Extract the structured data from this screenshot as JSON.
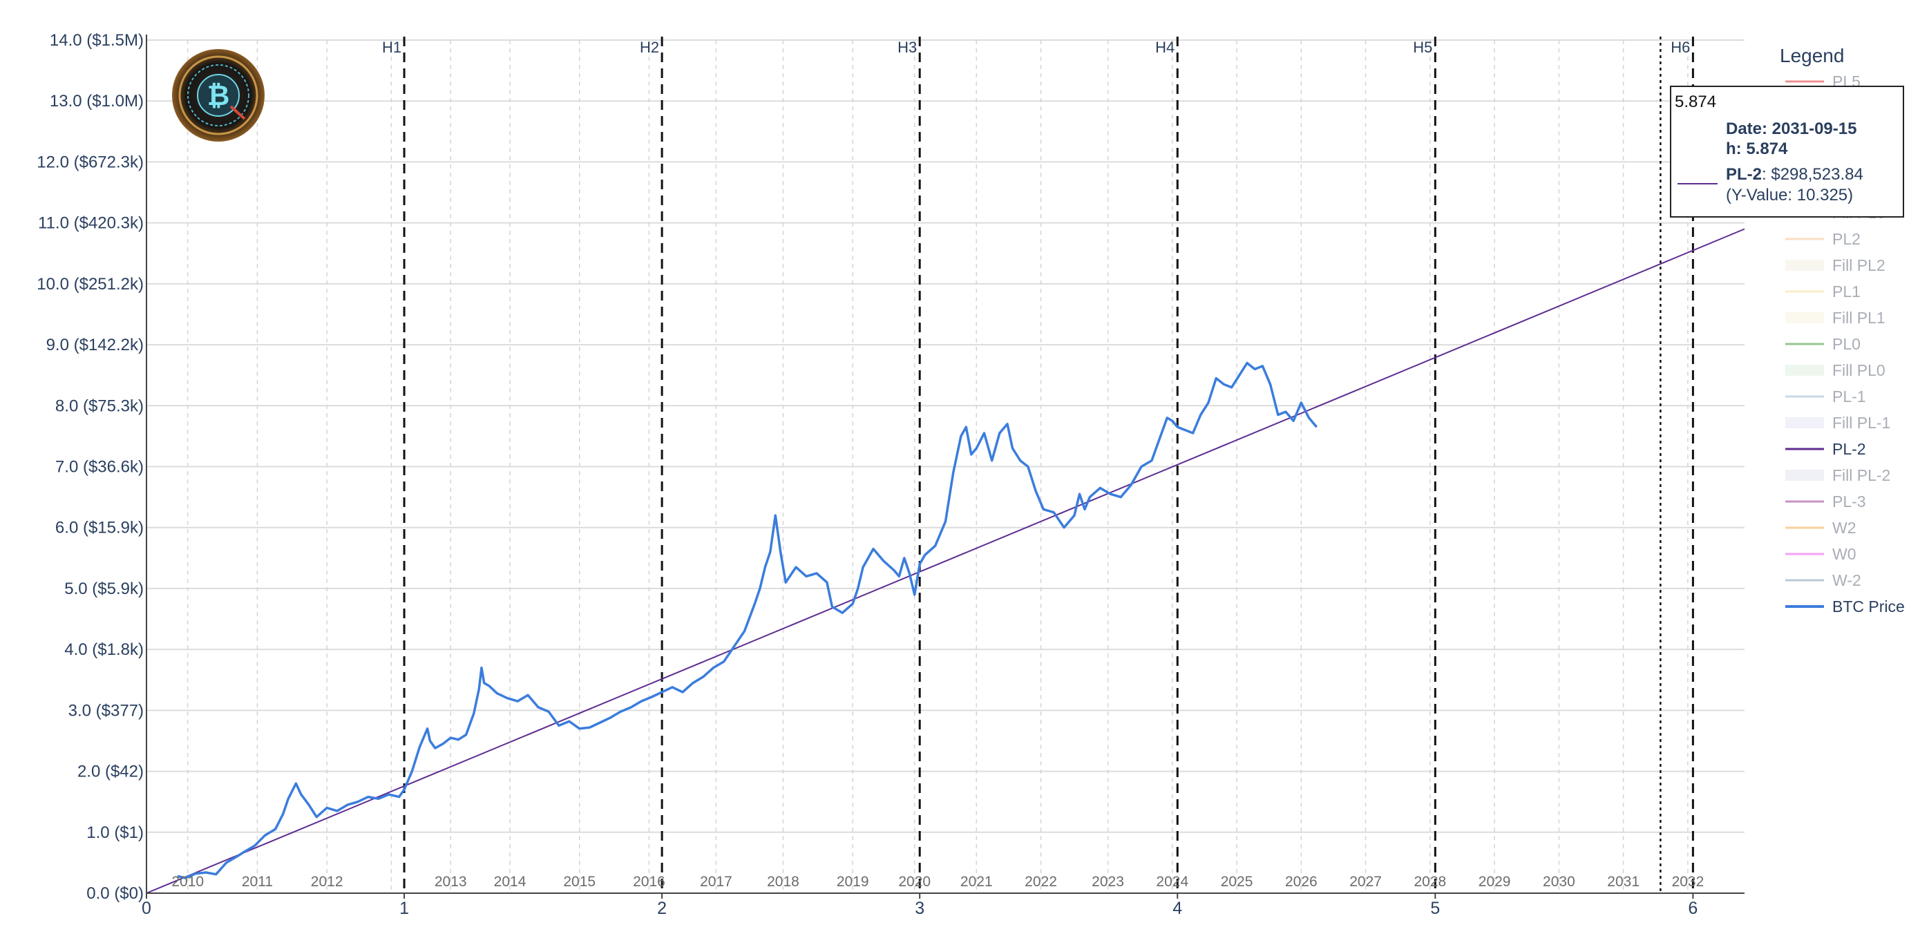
{
  "chart_data": {
    "type": "line",
    "title": "",
    "xlabel": "",
    "ylabel": "",
    "xlim": [
      0,
      6.2
    ],
    "ylim": [
      0,
      14
    ],
    "grid": true,
    "legend_placement": "right",
    "y_ticks": [
      {
        "v": 0,
        "label": "0.0 ($0)"
      },
      {
        "v": 1,
        "label": "1.0 ($1)"
      },
      {
        "v": 2,
        "label": "2.0 ($42)"
      },
      {
        "v": 3,
        "label": "3.0 ($377)"
      },
      {
        "v": 4,
        "label": "4.0 ($1.8k)"
      },
      {
        "v": 5,
        "label": "5.0 ($5.9k)"
      },
      {
        "v": 6,
        "label": "6.0 ($15.9k)"
      },
      {
        "v": 7,
        "label": "7.0 ($36.6k)"
      },
      {
        "v": 8,
        "label": "8.0 ($75.3k)"
      },
      {
        "v": 9,
        "label": "9.0 ($142.2k)"
      },
      {
        "v": 10,
        "label": "10.0 ($251.2k)"
      },
      {
        "v": 11,
        "label": "11.0 ($420.3k)"
      },
      {
        "v": 12,
        "label": "12.0 ($672.3k)"
      },
      {
        "v": 13,
        "label": "13.0 ($1.0M)"
      },
      {
        "v": 14,
        "label": "14.0 ($1.5M)"
      }
    ],
    "x_ticks": [
      {
        "v": 0,
        "label": "0"
      },
      {
        "v": 1,
        "label": "1"
      },
      {
        "v": 2,
        "label": "2"
      },
      {
        "v": 3,
        "label": "3"
      },
      {
        "v": 4,
        "label": "4"
      },
      {
        "v": 5,
        "label": "5"
      },
      {
        "v": 6,
        "label": "6"
      }
    ],
    "year_ticks": [
      {
        "v": 0.16,
        "label": "2010"
      },
      {
        "v": 0.43,
        "label": "2011"
      },
      {
        "v": 0.7,
        "label": "2012"
      },
      {
        "v": 0.95,
        "label": "2012",
        "hidden": true
      },
      {
        "v": 1.18,
        "label": "2013"
      },
      {
        "v": 1.41,
        "label": "2014"
      },
      {
        "v": 1.68,
        "label": "2015"
      },
      {
        "v": 1.95,
        "label": "2016"
      },
      {
        "v": 2.21,
        "label": "2017"
      },
      {
        "v": 2.47,
        "label": "2018"
      },
      {
        "v": 2.74,
        "label": "2019"
      },
      {
        "v": 2.98,
        "label": "2020"
      },
      {
        "v": 3.22,
        "label": "2021"
      },
      {
        "v": 3.47,
        "label": "2022"
      },
      {
        "v": 3.73,
        "label": "2023"
      },
      {
        "v": 3.98,
        "label": "2024"
      },
      {
        "v": 4.23,
        "label": "2025"
      },
      {
        "v": 4.48,
        "label": "2026"
      },
      {
        "v": 4.73,
        "label": "2027"
      },
      {
        "v": 4.98,
        "label": "2028"
      },
      {
        "v": 5.23,
        "label": "2029"
      },
      {
        "v": 5.48,
        "label": "2030"
      },
      {
        "v": 5.73,
        "label": "2031"
      },
      {
        "v": 5.98,
        "label": "2032"
      }
    ],
    "halvings": [
      {
        "v": 1,
        "label": "H1"
      },
      {
        "v": 2,
        "label": "H2"
      },
      {
        "v": 3,
        "label": "H3"
      },
      {
        "v": 4,
        "label": "H4"
      },
      {
        "v": 5,
        "label": "H5"
      },
      {
        "v": 6,
        "label": "H6"
      }
    ],
    "hover_line_x": 5.874,
    "series": [
      {
        "name": "PL-2",
        "color": "#5e2d91",
        "x": [
          0,
          6.2
        ],
        "y": [
          0,
          10.9
        ]
      },
      {
        "name": "BTC Price",
        "color": "#3b7ddd",
        "x": [
          0.12,
          0.15,
          0.19,
          0.23,
          0.27,
          0.31,
          0.35,
          0.38,
          0.42,
          0.46,
          0.5,
          0.53,
          0.55,
          0.58,
          0.6,
          0.63,
          0.66,
          0.7,
          0.74,
          0.78,
          0.82,
          0.86,
          0.9,
          0.94,
          0.98,
          1.0,
          1.03,
          1.06,
          1.09,
          1.1,
          1.12,
          1.15,
          1.18,
          1.21,
          1.24,
          1.27,
          1.29,
          1.3,
          1.31,
          1.33,
          1.36,
          1.4,
          1.44,
          1.48,
          1.52,
          1.56,
          1.6,
          1.64,
          1.68,
          1.72,
          1.76,
          1.8,
          1.84,
          1.88,
          1.92,
          1.96,
          2.0,
          2.04,
          2.08,
          2.12,
          2.16,
          2.2,
          2.24,
          2.28,
          2.32,
          2.36,
          2.38,
          2.4,
          2.42,
          2.44,
          2.46,
          2.48,
          2.52,
          2.56,
          2.6,
          2.64,
          2.66,
          2.7,
          2.74,
          2.76,
          2.78,
          2.82,
          2.86,
          2.9,
          2.92,
          2.94,
          2.96,
          2.98,
          3.0,
          3.02,
          3.06,
          3.1,
          3.13,
          3.16,
          3.18,
          3.2,
          3.22,
          3.25,
          3.28,
          3.31,
          3.34,
          3.36,
          3.39,
          3.42,
          3.45,
          3.48,
          3.52,
          3.56,
          3.6,
          3.62,
          3.64,
          3.66,
          3.7,
          3.74,
          3.78,
          3.82,
          3.86,
          3.9,
          3.93,
          3.96,
          3.98,
          4.0,
          4.03,
          4.06,
          4.09,
          4.12,
          4.15,
          4.18,
          4.21,
          4.24,
          4.27,
          4.3,
          4.33,
          4.36,
          4.39,
          4.42,
          4.45,
          4.48,
          4.51,
          4.54
        ],
        "y": [
          0.28,
          0.25,
          0.32,
          0.34,
          0.31,
          0.5,
          0.6,
          0.68,
          0.78,
          0.95,
          1.05,
          1.3,
          1.55,
          1.8,
          1.62,
          1.45,
          1.25,
          1.4,
          1.35,
          1.45,
          1.5,
          1.58,
          1.55,
          1.62,
          1.58,
          1.7,
          2.0,
          2.4,
          2.7,
          2.5,
          2.38,
          2.45,
          2.55,
          2.52,
          2.6,
          2.95,
          3.35,
          3.7,
          3.45,
          3.4,
          3.28,
          3.2,
          3.15,
          3.25,
          3.05,
          2.98,
          2.75,
          2.82,
          2.7,
          2.72,
          2.8,
          2.88,
          2.98,
          3.05,
          3.15,
          3.22,
          3.3,
          3.38,
          3.3,
          3.45,
          3.55,
          3.7,
          3.8,
          4.05,
          4.3,
          4.75,
          5.0,
          5.35,
          5.6,
          6.2,
          5.6,
          5.1,
          5.35,
          5.2,
          5.25,
          5.1,
          4.7,
          4.6,
          4.75,
          5.0,
          5.35,
          5.65,
          5.45,
          5.3,
          5.2,
          5.5,
          5.25,
          4.9,
          5.4,
          5.55,
          5.7,
          6.1,
          6.9,
          7.5,
          7.65,
          7.2,
          7.3,
          7.55,
          7.1,
          7.55,
          7.7,
          7.3,
          7.1,
          7.0,
          6.6,
          6.3,
          6.25,
          6.0,
          6.2,
          6.55,
          6.3,
          6.5,
          6.65,
          6.55,
          6.5,
          6.7,
          7.0,
          7.1,
          7.45,
          7.8,
          7.75,
          7.65,
          7.6,
          7.55,
          7.85,
          8.05,
          8.45,
          8.35,
          8.3,
          8.5,
          8.7,
          8.6,
          8.65,
          8.35,
          7.85,
          7.9,
          7.75,
          8.05,
          7.8,
          7.65
        ]
      }
    ],
    "tooltip": {
      "header": "5.874",
      "line1": "Date: 2031-09-15",
      "line2": "h: 5.874",
      "series_label": "PL-2",
      "series_value": ": $298,523.84",
      "y_value_text": "(Y-Value: 10.325)"
    },
    "legend": {
      "title": "Legend",
      "items": [
        {
          "label": "PL5",
          "color": "#e8474b",
          "type": "line",
          "faded": true
        },
        {
          "label": "Fill PL3",
          "color": "#f1d3b3",
          "type": "line",
          "faded": true
        },
        {
          "label": "PL2",
          "color": "#f6c89a",
          "type": "line",
          "faded": true
        },
        {
          "label": "Fill PL2",
          "color": "#f8f5ee",
          "type": "fill",
          "faded": true
        },
        {
          "label": "PL1",
          "color": "#f8e0a8",
          "type": "line",
          "faded": true
        },
        {
          "label": "Fill PL1",
          "color": "#fbf8ec",
          "type": "fill",
          "faded": true
        },
        {
          "label": "PL0",
          "color": "#4ca24c",
          "type": "line",
          "faded": true
        },
        {
          "label": "Fill PL0",
          "color": "#ecf6ec",
          "type": "fill",
          "faded": true
        },
        {
          "label": "PL-1",
          "color": "#aac0d8",
          "type": "line",
          "faded": true
        },
        {
          "label": "Fill PL-1",
          "color": "#eef0f8",
          "type": "fill",
          "faded": true
        },
        {
          "label": "PL-2",
          "color": "#5e2d91",
          "type": "line",
          "faded": false
        },
        {
          "label": "Fill PL-2",
          "color": "#eeeef6",
          "type": "fill",
          "faded": true
        },
        {
          "label": "PL-3",
          "color": "#a04c9c",
          "type": "line",
          "faded": true
        },
        {
          "label": "W2",
          "color": "#f5b15a",
          "type": "line",
          "faded": true
        },
        {
          "label": "W0",
          "color": "#ee66ee",
          "type": "line",
          "faded": true
        },
        {
          "label": "W-2",
          "color": "#8aa8b8",
          "type": "line",
          "faded": true
        },
        {
          "label": "BTC Price",
          "color": "#3b7ddd",
          "type": "line",
          "faded": false
        }
      ]
    },
    "logo_icon": "bitcoin-logo-icon"
  }
}
